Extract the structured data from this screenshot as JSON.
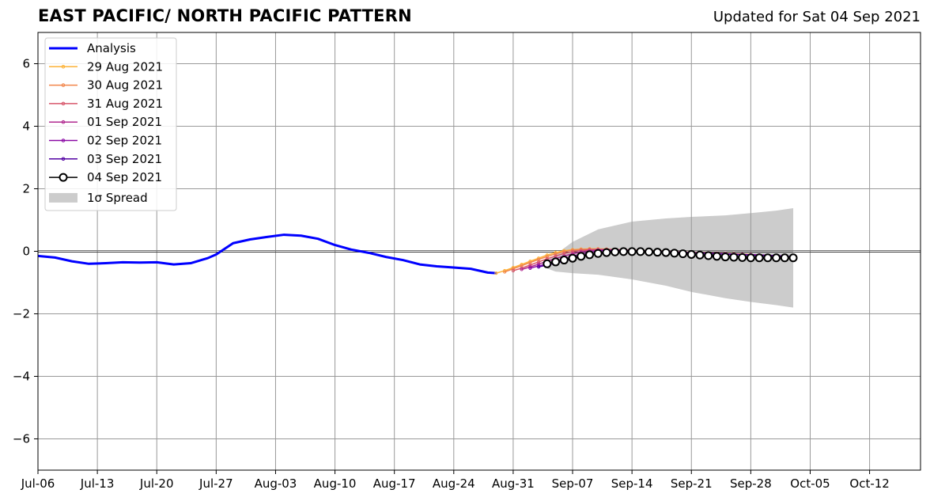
{
  "chart_data": {
    "type": "line",
    "title": "EAST PACIFIC/ NORTH PACIFIC PATTERN",
    "subtitle": "Updated for Sat 04 Sep 2021",
    "xlabel": "",
    "ylabel": "",
    "xlim": [
      "2021-07-06",
      "2021-10-18"
    ],
    "ylim": [
      -7,
      7
    ],
    "x_ticks": [
      "Jul-06",
      "Jul-13",
      "Jul-20",
      "Jul-27",
      "Aug-03",
      "Aug-10",
      "Aug-17",
      "Aug-24",
      "Aug-31",
      "Sep-07",
      "Sep-14",
      "Sep-21",
      "Sep-28",
      "Oct-05",
      "Oct-12"
    ],
    "y_ticks": [
      "6",
      "4",
      "2",
      "0",
      "−2",
      "−4",
      "−6"
    ],
    "y_tick_values": [
      6,
      4,
      2,
      0,
      -2,
      -4,
      -6
    ],
    "grid": true,
    "legend_position": "top-left",
    "analysis": {
      "name": "Analysis",
      "color": "#0000ff",
      "x": [
        "2021-07-06",
        "2021-07-08",
        "2021-07-10",
        "2021-07-12",
        "2021-07-14",
        "2021-07-16",
        "2021-07-18",
        "2021-07-20",
        "2021-07-22",
        "2021-07-24",
        "2021-07-26",
        "2021-07-27",
        "2021-07-29",
        "2021-07-31",
        "2021-08-02",
        "2021-08-04",
        "2021-08-06",
        "2021-08-08",
        "2021-08-10",
        "2021-08-12",
        "2021-08-14",
        "2021-08-16",
        "2021-08-18",
        "2021-08-20",
        "2021-08-22",
        "2021-08-24",
        "2021-08-26",
        "2021-08-28",
        "2021-08-29"
      ],
      "y": [
        -0.15,
        -0.2,
        -0.32,
        -0.4,
        -0.38,
        -0.35,
        -0.36,
        -0.35,
        -0.42,
        -0.38,
        -0.22,
        -0.1,
        0.26,
        0.38,
        0.46,
        0.53,
        0.5,
        0.4,
        0.2,
        0.05,
        -0.05,
        -0.18,
        -0.28,
        -0.42,
        -0.48,
        -0.52,
        -0.56,
        -0.68,
        -0.7
      ]
    },
    "forecasts": [
      {
        "name": "29 Aug 2021",
        "color": "#fdb338",
        "start": "2021-08-29",
        "end": "2021-09-28",
        "y": [
          -0.7,
          -0.62,
          -0.52,
          -0.42,
          -0.32,
          -0.22,
          -0.12,
          -0.04,
          0.02,
          0.05,
          0.07,
          0.08,
          0.08,
          0.07,
          0.06,
          0.05,
          0.04,
          0.03,
          0.02,
          0.01,
          0.0,
          -0.01,
          -0.02,
          -0.03,
          -0.04,
          -0.05,
          -0.06,
          -0.07,
          -0.08,
          -0.09,
          -0.1
        ]
      },
      {
        "name": "30 Aug 2021",
        "color": "#f1864b",
        "start": "2021-08-30",
        "end": "2021-09-29",
        "y": [
          -0.66,
          -0.56,
          -0.46,
          -0.36,
          -0.26,
          -0.17,
          -0.08,
          -0.01,
          0.04,
          0.06,
          0.07,
          0.07,
          0.06,
          0.05,
          0.04,
          0.03,
          0.02,
          0.01,
          0.0,
          -0.01,
          -0.02,
          -0.03,
          -0.04,
          -0.05,
          -0.06,
          -0.07,
          -0.08,
          -0.09,
          -0.1,
          -0.11,
          -0.12
        ]
      },
      {
        "name": "31 Aug 2021",
        "color": "#d8576b",
        "start": "2021-08-31",
        "end": "2021-09-30",
        "y": [
          -0.62,
          -0.54,
          -0.44,
          -0.34,
          -0.24,
          -0.15,
          -0.07,
          -0.01,
          0.03,
          0.05,
          0.06,
          0.06,
          0.05,
          0.04,
          0.03,
          0.02,
          0.01,
          0.0,
          -0.01,
          -0.02,
          -0.03,
          -0.04,
          -0.05,
          -0.06,
          -0.07,
          -0.08,
          -0.09,
          -0.1,
          -0.11,
          -0.12,
          -0.13
        ]
      },
      {
        "name": "01 Sep 2021",
        "color": "#b12a90",
        "start": "2021-09-01",
        "end": "2021-10-01",
        "y": [
          -0.58,
          -0.5,
          -0.41,
          -0.32,
          -0.23,
          -0.15,
          -0.08,
          -0.02,
          0.02,
          0.04,
          0.05,
          0.05,
          0.04,
          0.03,
          0.02,
          0.01,
          0.0,
          -0.01,
          -0.02,
          -0.03,
          -0.04,
          -0.05,
          -0.06,
          -0.07,
          -0.08,
          -0.09,
          -0.1,
          -0.11,
          -0.12,
          -0.13,
          -0.14
        ]
      },
      {
        "name": "02 Sep 2021",
        "color": "#8b0aa5",
        "start": "2021-09-02",
        "end": "2021-10-02",
        "y": [
          -0.54,
          -0.47,
          -0.4,
          -0.32,
          -0.24,
          -0.16,
          -0.09,
          -0.03,
          0.01,
          0.03,
          0.04,
          0.04,
          0.03,
          0.02,
          0.01,
          0.0,
          -0.01,
          -0.02,
          -0.03,
          -0.04,
          -0.05,
          -0.06,
          -0.07,
          -0.08,
          -0.09,
          -0.1,
          -0.11,
          -0.12,
          -0.13,
          -0.14,
          -0.15
        ]
      },
      {
        "name": "03 Sep 2021",
        "color": "#5302a3",
        "start": "2021-09-03",
        "end": "2021-10-03",
        "y": [
          -0.5,
          -0.44,
          -0.38,
          -0.31,
          -0.24,
          -0.17,
          -0.1,
          -0.05,
          -0.01,
          0.01,
          0.02,
          0.02,
          0.01,
          0.0,
          -0.01,
          -0.02,
          -0.03,
          -0.04,
          -0.05,
          -0.06,
          -0.07,
          -0.08,
          -0.09,
          -0.1,
          -0.11,
          -0.12,
          -0.13,
          -0.14,
          -0.15,
          -0.16,
          -0.17
        ]
      },
      {
        "name": "04 Sep 2021",
        "color": "#000000",
        "start": "2021-09-04",
        "end": "2021-10-03",
        "y": [
          -0.4,
          -0.34,
          -0.28,
          -0.22,
          -0.16,
          -0.11,
          -0.07,
          -0.04,
          -0.02,
          -0.01,
          -0.01,
          -0.01,
          -0.02,
          -0.03,
          -0.04,
          -0.06,
          -0.08,
          -0.1,
          -0.12,
          -0.14,
          -0.16,
          -0.18,
          -0.19,
          -0.2,
          -0.21,
          -0.21,
          -0.21,
          -0.21,
          -0.21,
          -0.21
        ]
      }
    ],
    "spread": {
      "name": "1σ Spread",
      "color": "#cccccc",
      "x": [
        "2021-09-04",
        "2021-09-05",
        "2021-09-07",
        "2021-09-10",
        "2021-09-14",
        "2021-09-18",
        "2021-09-21",
        "2021-09-25",
        "2021-09-28",
        "2021-10-01",
        "2021-10-03"
      ],
      "upper": [
        -0.3,
        -0.1,
        0.3,
        0.7,
        0.95,
        1.05,
        1.1,
        1.15,
        1.22,
        1.3,
        1.38
      ],
      "lower": [
        -0.55,
        -0.65,
        -0.7,
        -0.75,
        -0.9,
        -1.1,
        -1.3,
        -1.5,
        -1.62,
        -1.72,
        -1.8
      ]
    }
  }
}
